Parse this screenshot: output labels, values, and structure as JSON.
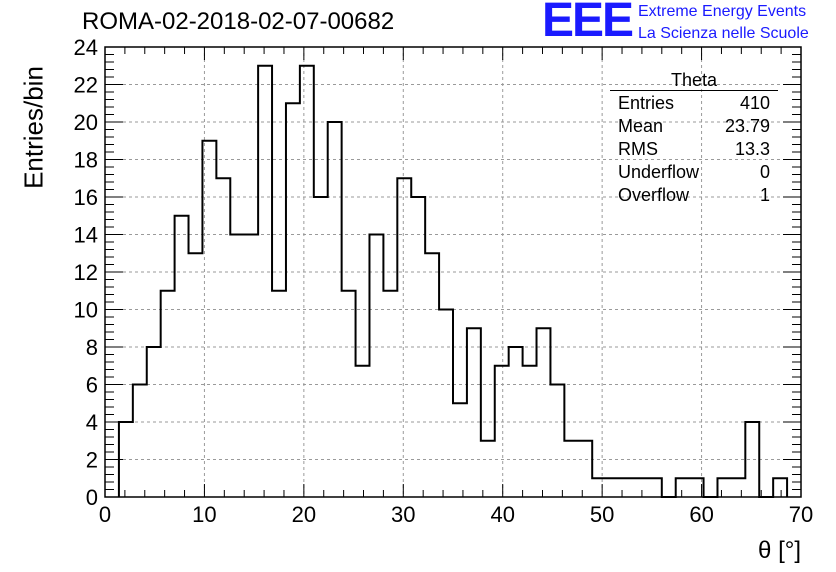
{
  "header": {
    "run_title": "ROMA-02-2018-02-07-00682",
    "logo_mark": "EEE",
    "logo_line1": "Extreme Energy Events",
    "logo_line2": "La Scienza nelle Scuole"
  },
  "stats_box": {
    "title": "Theta",
    "rows": [
      {
        "label": "Entries",
        "value": "410"
      },
      {
        "label": "Mean",
        "value": "23.79"
      },
      {
        "label": "RMS",
        "value": "13.3"
      },
      {
        "label": "Underflow",
        "value": "0"
      },
      {
        "label": "Overflow",
        "value": "1"
      }
    ]
  },
  "chart_data": {
    "type": "bar",
    "style": "step-histogram",
    "xlabel": "θ [°]",
    "ylabel": "Entries/bin",
    "xlim": [
      0,
      70
    ],
    "ylim": [
      0,
      24
    ],
    "grid": true,
    "bin_width": 1.4,
    "bin_start": 1.4,
    "x_ticks": [
      0,
      10,
      20,
      30,
      40,
      50,
      60,
      70
    ],
    "y_ticks": [
      0,
      2,
      4,
      6,
      8,
      10,
      12,
      14,
      16,
      18,
      20,
      22,
      24
    ],
    "values": [
      4,
      6,
      8,
      11,
      15,
      13,
      19,
      17,
      14,
      14,
      23,
      11,
      21,
      23,
      16,
      20,
      11,
      7,
      14,
      11,
      17,
      16,
      13,
      10,
      5,
      9,
      3,
      7,
      8,
      7,
      9,
      6,
      3,
      3,
      1,
      1,
      1,
      1,
      1,
      0,
      1,
      1,
      0,
      1,
      1,
      4,
      0,
      1
    ],
    "line_color": "#000000",
    "grid_color": "#9a9a9a"
  }
}
